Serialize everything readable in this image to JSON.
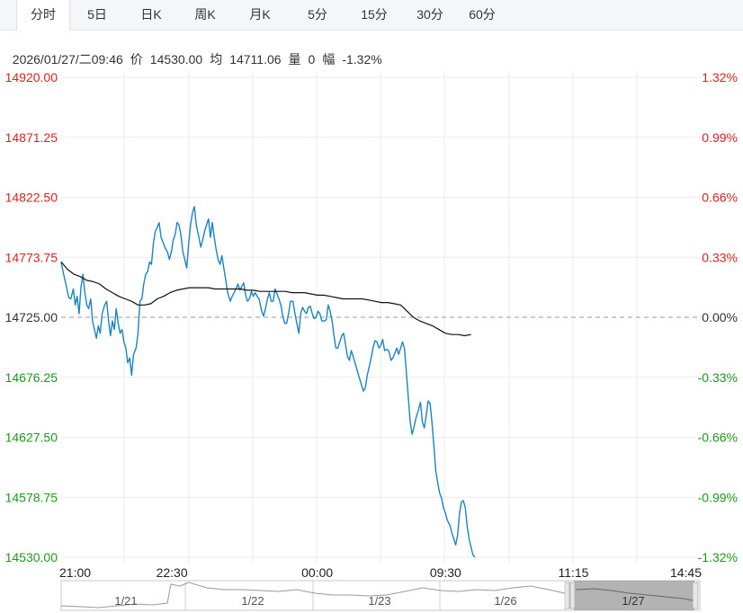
{
  "tabs": [
    "分时",
    "5日",
    "日K",
    "周K",
    "月K",
    "5分",
    "15分",
    "30分",
    "60分"
  ],
  "active_tab": "分时",
  "info": {
    "datetime": "2026/01/27/二09:46",
    "price_label": "价",
    "price": "14530.00",
    "avg_label": "均",
    "avg": "14711.06",
    "volume_label": "量",
    "volume": "0",
    "change_label": "幅",
    "change": "-1.32%"
  },
  "colors": {
    "up": "#e02020",
    "down": "#1a9a1a",
    "line": "#1a84c4",
    "avg": "#111111",
    "neutral": "#333333",
    "grid": "#ebebeb"
  },
  "chart_data": {
    "type": "line",
    "title": "",
    "base_price": 14725.0,
    "ylim": [
      14530.0,
      14920.0
    ],
    "y_ticks": [
      "14920.00",
      "14871.25",
      "14822.50",
      "14773.75",
      "14725.00",
      "14676.25",
      "14627.50",
      "14578.75",
      "14530.00"
    ],
    "pct_ticks": [
      "1.32%",
      "0.99%",
      "0.66%",
      "0.33%",
      "0.00%",
      "-0.33%",
      "-0.66%",
      "-0.99%",
      "-1.32%"
    ],
    "x_ticks": [
      "21:00",
      "22:30",
      "00:00",
      "09:30",
      "11:15",
      "14:45"
    ],
    "session_fraction": [
      0,
      0.1667,
      0.3333,
      0.5,
      0.6667,
      0.8333,
      1
    ],
    "series": [
      {
        "kind": "price",
        "x": [
          0.0,
          0.003,
          0.006,
          0.009,
          0.012,
          0.015,
          0.019,
          0.022,
          0.025,
          0.028,
          0.031,
          0.034,
          0.037,
          0.04,
          0.043,
          0.046,
          0.049,
          0.052,
          0.055,
          0.058,
          0.061,
          0.064,
          0.068,
          0.071,
          0.074,
          0.077,
          0.08,
          0.083,
          0.086,
          0.089,
          0.092,
          0.095,
          0.098,
          0.101,
          0.104,
          0.107,
          0.11,
          0.113,
          0.117,
          0.12,
          0.123,
          0.126,
          0.129,
          0.132,
          0.135,
          0.138,
          0.141,
          0.144,
          0.147,
          0.15,
          0.153,
          0.156,
          0.159,
          0.162,
          0.166,
          0.169,
          0.172,
          0.175,
          0.178,
          0.181,
          0.184,
          0.187,
          0.19,
          0.193,
          0.196,
          0.199,
          0.202,
          0.205,
          0.208,
          0.211,
          0.215,
          0.218,
          0.221,
          0.224,
          0.227,
          0.23,
          0.233,
          0.236,
          0.239,
          0.242,
          0.245,
          0.248,
          0.251,
          0.254,
          0.257,
          0.26,
          0.264,
          0.267,
          0.27,
          0.273,
          0.276,
          0.279,
          0.282,
          0.285,
          0.288,
          0.291,
          0.294,
          0.297,
          0.3,
          0.303,
          0.306,
          0.309,
          0.313,
          0.316,
          0.319,
          0.322,
          0.325,
          0.328,
          0.331,
          0.334,
          0.337,
          0.34,
          0.343,
          0.346,
          0.349,
          0.352,
          0.355,
          0.358,
          0.362,
          0.365,
          0.368,
          0.371,
          0.374,
          0.377,
          0.38,
          0.383,
          0.386,
          0.389,
          0.392,
          0.395,
          0.398,
          0.401,
          0.404,
          0.407,
          0.411,
          0.414,
          0.417,
          0.42,
          0.423,
          0.426,
          0.429,
          0.432,
          0.435,
          0.438,
          0.441,
          0.444,
          0.447,
          0.45,
          0.453,
          0.456,
          0.46,
          0.463,
          0.466,
          0.469,
          0.472,
          0.475,
          0.478,
          0.481,
          0.484,
          0.487,
          0.49,
          0.493,
          0.496,
          0.499,
          0.502,
          0.505,
          0.509,
          0.512,
          0.515,
          0.518,
          0.521,
          0.524,
          0.527,
          0.53,
          0.533,
          0.536,
          0.539,
          0.542,
          0.545,
          0.548,
          0.551,
          0.554,
          0.558,
          0.561,
          0.564,
          0.567,
          0.57,
          0.573,
          0.576,
          0.579,
          0.582,
          0.585,
          0.588,
          0.591,
          0.594,
          0.597,
          0.6,
          0.603,
          0.607,
          0.61,
          0.613,
          0.616,
          0.619,
          0.622,
          0.625,
          0.628,
          0.631,
          0.634,
          0.637,
          0.64,
          0.643,
          0.646
        ],
        "y": [
          14770,
          14762,
          14755,
          14748,
          14741,
          14740,
          14748,
          14735,
          14742,
          14728,
          14750,
          14760,
          14745,
          14735,
          14732,
          14740,
          14722,
          14715,
          14708,
          14718,
          14712,
          14728,
          14735,
          14738,
          14722,
          14710,
          14722,
          14715,
          14732,
          14720,
          14712,
          14715,
          14705,
          14700,
          14688,
          14692,
          14678,
          14695,
          14700,
          14712,
          14738,
          14740,
          14752,
          14760,
          14762,
          14770,
          14768,
          14785,
          14795,
          14798,
          14802,
          14790,
          14786,
          14782,
          14778,
          14772,
          14778,
          14788,
          14792,
          14802,
          14800,
          14792,
          14778,
          14772,
          14765,
          14785,
          14800,
          14810,
          14815,
          14800,
          14790,
          14782,
          14788,
          14795,
          14800,
          14805,
          14790,
          14802,
          14790,
          14780,
          14772,
          14768,
          14775,
          14765,
          14755,
          14745,
          14738,
          14742,
          14745,
          14748,
          14752,
          14747,
          14750,
          14753,
          14743,
          14738,
          14740,
          14746,
          14742,
          14745,
          14742,
          14740,
          14730,
          14726,
          14732,
          14740,
          14745,
          14738,
          14738,
          14748,
          14744,
          14740,
          14735,
          14726,
          14720,
          14720,
          14728,
          14738,
          14738,
          14728,
          14720,
          14712,
          14728,
          14733,
          14730,
          14728,
          14733,
          14734,
          14728,
          14724,
          14725,
          14730,
          14728,
          14722,
          14722,
          14723,
          14735,
          14730,
          14722,
          14710,
          14700,
          14700,
          14705,
          14710,
          14712,
          14703,
          14693,
          14690,
          14698,
          14693,
          14686,
          14680,
          14675,
          14670,
          14665,
          14668,
          14678,
          14685,
          14692,
          14700,
          14706,
          14705,
          14700,
          14702,
          14707,
          14698,
          14699,
          14697,
          14690,
          14692,
          14696,
          14700,
          14695,
          14700,
          14705,
          14700,
          14680,
          14660,
          14640,
          14630,
          14636,
          14643,
          14650,
          14656,
          14640,
          14635,
          14645,
          14657,
          14655,
          14640,
          14620,
          14600,
          14590,
          14582,
          14578,
          14570,
          14566,
          14560,
          14556,
          14550,
          14545,
          14540,
          14548,
          14566,
          14575,
          14576,
          14570,
          14555,
          14545,
          14538,
          14532,
          14530
        ]
      },
      {
        "kind": "average",
        "x": [
          0.0,
          0.01,
          0.02,
          0.03,
          0.04,
          0.05,
          0.06,
          0.07,
          0.08,
          0.09,
          0.1,
          0.11,
          0.12,
          0.13,
          0.14,
          0.15,
          0.16,
          0.17,
          0.18,
          0.19,
          0.2,
          0.21,
          0.22,
          0.23,
          0.24,
          0.25,
          0.26,
          0.27,
          0.28,
          0.29,
          0.3,
          0.31,
          0.32,
          0.33,
          0.34,
          0.35,
          0.36,
          0.37,
          0.38,
          0.39,
          0.4,
          0.41,
          0.42,
          0.43,
          0.44,
          0.45,
          0.46,
          0.47,
          0.48,
          0.49,
          0.5,
          0.51,
          0.52,
          0.53,
          0.54,
          0.55,
          0.56,
          0.57,
          0.58,
          0.59,
          0.6,
          0.61,
          0.62,
          0.63,
          0.64
        ],
        "y": [
          14770,
          14764,
          14760,
          14758,
          14755,
          14754,
          14752,
          14748,
          14745,
          14742,
          14740,
          14738,
          14735,
          14735,
          14736,
          14740,
          14742,
          14745,
          14747,
          14748,
          14749,
          14749,
          14749,
          14749,
          14748,
          14748,
          14748,
          14748,
          14748,
          14747,
          14747,
          14746,
          14746,
          14746,
          14746,
          14746,
          14745,
          14745,
          14745,
          14744,
          14743,
          14743,
          14742,
          14741,
          14740,
          14740,
          14740,
          14740,
          14739,
          14738,
          14737,
          14737,
          14736,
          14735,
          14730,
          14725,
          14722,
          14720,
          14718,
          14715,
          14712,
          14711,
          14711,
          14710,
          14711
        ]
      }
    ]
  },
  "navigator": {
    "labels": [
      "1/21",
      "1/22",
      "1/23",
      "1/26",
      "1/27"
    ]
  }
}
